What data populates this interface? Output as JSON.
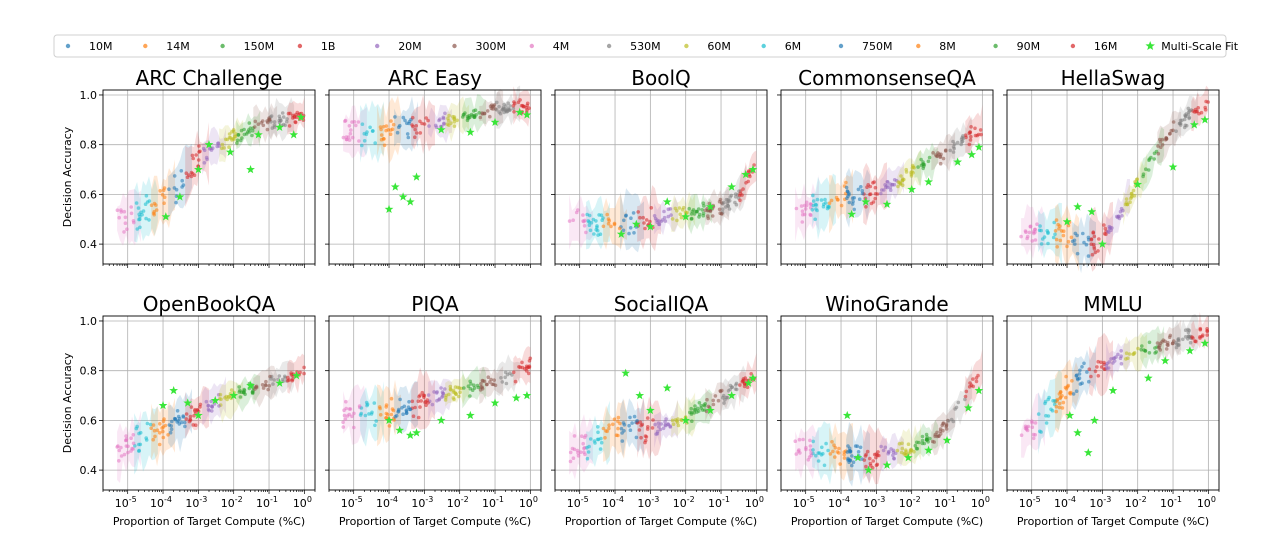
{
  "legend": {
    "entries": [
      {
        "name": "10M",
        "color": "#1f77b4",
        "marker": "dot"
      },
      {
        "name": "14M",
        "color": "#ff7f0e",
        "marker": "dot"
      },
      {
        "name": "150M",
        "color": "#2ca02c",
        "marker": "dot"
      },
      {
        "name": "1B",
        "color": "#d62728",
        "marker": "dot"
      },
      {
        "name": "20M",
        "color": "#9467bd",
        "marker": "dot"
      },
      {
        "name": "300M",
        "color": "#8c564b",
        "marker": "dot"
      },
      {
        "name": "4M",
        "color": "#e377c2",
        "marker": "dot"
      },
      {
        "name": "530M",
        "color": "#7f7f7f",
        "marker": "dot"
      },
      {
        "name": "60M",
        "color": "#bcbd22",
        "marker": "dot"
      },
      {
        "name": "6M",
        "color": "#17becf",
        "marker": "dot"
      },
      {
        "name": "750M",
        "color": "#1f77b4",
        "marker": "dot"
      },
      {
        "name": "8M",
        "color": "#ff7f0e",
        "marker": "dot"
      },
      {
        "name": "90M",
        "color": "#2ca02c",
        "marker": "dot"
      },
      {
        "name": "16M",
        "color": "#d62728",
        "marker": "dot"
      },
      {
        "name": "Multi-Scale Fit",
        "color": "#39e639",
        "marker": "star"
      }
    ]
  },
  "chart_data": [
    {
      "type": "scatter",
      "title": "ARC Challenge",
      "xscale": "log",
      "xlim": [
        2e-06,
        2
      ],
      "ylim": [
        0.32,
        1.02
      ],
      "ylabel": "Decision Accuracy",
      "xlabel": "",
      "trend": [
        [
          5e-06,
          0.49
        ],
        [
          3e-05,
          0.53
        ],
        [
          0.0001,
          0.57
        ],
        [
          0.0003,
          0.65
        ],
        [
          0.001,
          0.74
        ],
        [
          0.003,
          0.79
        ],
        [
          0.01,
          0.83
        ],
        [
          0.03,
          0.86
        ],
        [
          0.1,
          0.89
        ],
        [
          0.3,
          0.9
        ],
        [
          1,
          0.93
        ]
      ],
      "fit": [
        [
          0.00012,
          0.51
        ],
        [
          0.0003,
          0.59
        ],
        [
          0.001,
          0.7
        ],
        [
          0.002,
          0.8
        ],
        [
          0.008,
          0.77
        ],
        [
          0.03,
          0.7
        ],
        [
          0.05,
          0.84
        ],
        [
          0.2,
          0.87
        ],
        [
          0.5,
          0.84
        ],
        [
          0.8,
          0.91
        ]
      ]
    },
    {
      "type": "scatter",
      "title": "ARC Easy",
      "xscale": "log",
      "xlim": [
        2e-06,
        2
      ],
      "ylim": [
        0.32,
        1.02
      ],
      "ylabel": "",
      "xlabel": "",
      "trend": [
        [
          5e-06,
          0.84
        ],
        [
          3e-05,
          0.85
        ],
        [
          0.0001,
          0.86
        ],
        [
          0.0003,
          0.87
        ],
        [
          0.001,
          0.88
        ],
        [
          0.003,
          0.89
        ],
        [
          0.01,
          0.91
        ],
        [
          0.03,
          0.92
        ],
        [
          0.1,
          0.94
        ],
        [
          0.3,
          0.95
        ],
        [
          1,
          0.96
        ]
      ],
      "fit": [
        [
          0.0001,
          0.54
        ],
        [
          0.00015,
          0.63
        ],
        [
          0.00025,
          0.59
        ],
        [
          0.0004,
          0.57
        ],
        [
          0.0006,
          0.67
        ],
        [
          0.003,
          0.86
        ],
        [
          0.02,
          0.85
        ],
        [
          0.1,
          0.89
        ],
        [
          0.5,
          0.93
        ],
        [
          0.8,
          0.92
        ]
      ]
    },
    {
      "type": "scatter",
      "title": "BoolQ",
      "xscale": "log",
      "xlim": [
        2e-06,
        2
      ],
      "ylim": [
        0.32,
        1.02
      ],
      "ylabel": "",
      "xlabel": "",
      "trend": [
        [
          5e-06,
          0.49
        ],
        [
          3e-05,
          0.48
        ],
        [
          0.0001,
          0.48
        ],
        [
          0.0003,
          0.49
        ],
        [
          0.001,
          0.5
        ],
        [
          0.003,
          0.51
        ],
        [
          0.01,
          0.52
        ],
        [
          0.03,
          0.53
        ],
        [
          0.1,
          0.55
        ],
        [
          0.3,
          0.59
        ],
        [
          1,
          0.72
        ]
      ],
      "fit": [
        [
          0.00015,
          0.44
        ],
        [
          0.0004,
          0.48
        ],
        [
          0.001,
          0.47
        ],
        [
          0.003,
          0.57
        ],
        [
          0.01,
          0.51
        ],
        [
          0.05,
          0.55
        ],
        [
          0.2,
          0.63
        ],
        [
          0.5,
          0.68
        ],
        [
          0.8,
          0.7
        ]
      ]
    },
    {
      "type": "scatter",
      "title": "CommonsenseQA",
      "xscale": "log",
      "xlim": [
        2e-06,
        2
      ],
      "ylim": [
        0.32,
        1.02
      ],
      "ylabel": "",
      "xlabel": "",
      "trend": [
        [
          5e-06,
          0.52
        ],
        [
          3e-05,
          0.56
        ],
        [
          0.0001,
          0.59
        ],
        [
          0.0003,
          0.6
        ],
        [
          0.001,
          0.61
        ],
        [
          0.003,
          0.64
        ],
        [
          0.01,
          0.69
        ],
        [
          0.03,
          0.73
        ],
        [
          0.1,
          0.77
        ],
        [
          0.3,
          0.82
        ],
        [
          1,
          0.87
        ]
      ],
      "fit": [
        [
          0.0002,
          0.52
        ],
        [
          0.0005,
          0.57
        ],
        [
          0.002,
          0.56
        ],
        [
          0.01,
          0.62
        ],
        [
          0.03,
          0.65
        ],
        [
          0.2,
          0.73
        ],
        [
          0.5,
          0.76
        ],
        [
          0.8,
          0.79
        ]
      ]
    },
    {
      "type": "scatter",
      "title": "HellaSwag",
      "xscale": "log",
      "xlim": [
        2e-06,
        2
      ],
      "ylim": [
        0.32,
        1.02
      ],
      "ylabel": "",
      "xlabel": "",
      "trend": [
        [
          5e-06,
          0.45
        ],
        [
          3e-05,
          0.45
        ],
        [
          0.0001,
          0.44
        ],
        [
          0.0003,
          0.4
        ],
        [
          0.001,
          0.42
        ],
        [
          0.003,
          0.52
        ],
        [
          0.01,
          0.64
        ],
        [
          0.03,
          0.76
        ],
        [
          0.1,
          0.86
        ],
        [
          0.3,
          0.92
        ],
        [
          1,
          0.97
        ]
      ],
      "fit": [
        [
          0.0001,
          0.49
        ],
        [
          0.0002,
          0.55
        ],
        [
          0.0005,
          0.53
        ],
        [
          0.001,
          0.4
        ],
        [
          0.01,
          0.64
        ],
        [
          0.1,
          0.71
        ],
        [
          0.4,
          0.88
        ],
        [
          0.8,
          0.9
        ]
      ]
    },
    {
      "type": "scatter",
      "title": "OpenBookQA",
      "xscale": "log",
      "xlim": [
        2e-06,
        2
      ],
      "ylim": [
        0.32,
        1.02
      ],
      "ylabel": "Decision Accuracy",
      "xlabel": "Proportion of Target Compute (%C)",
      "trend": [
        [
          5e-06,
          0.47
        ],
        [
          3e-05,
          0.53
        ],
        [
          0.0001,
          0.56
        ],
        [
          0.0003,
          0.6
        ],
        [
          0.001,
          0.64
        ],
        [
          0.003,
          0.67
        ],
        [
          0.01,
          0.7
        ],
        [
          0.03,
          0.72
        ],
        [
          0.1,
          0.75
        ],
        [
          0.3,
          0.77
        ],
        [
          1,
          0.81
        ]
      ],
      "fit": [
        [
          0.0001,
          0.66
        ],
        [
          0.0002,
          0.72
        ],
        [
          0.0005,
          0.67
        ],
        [
          0.001,
          0.62
        ],
        [
          0.003,
          0.68
        ],
        [
          0.01,
          0.7
        ],
        [
          0.03,
          0.74
        ],
        [
          0.2,
          0.75
        ],
        [
          0.6,
          0.78
        ]
      ]
    },
    {
      "type": "scatter",
      "title": "PIQA",
      "xscale": "log",
      "xlim": [
        2e-06,
        2
      ],
      "ylim": [
        0.32,
        1.02
      ],
      "ylabel": "",
      "xlabel": "Proportion of Target Compute (%C)",
      "trend": [
        [
          5e-06,
          0.63
        ],
        [
          3e-05,
          0.62
        ],
        [
          0.0001,
          0.63
        ],
        [
          0.0003,
          0.65
        ],
        [
          0.001,
          0.68
        ],
        [
          0.003,
          0.7
        ],
        [
          0.01,
          0.72
        ],
        [
          0.03,
          0.74
        ],
        [
          0.1,
          0.76
        ],
        [
          0.3,
          0.78
        ],
        [
          1,
          0.82
        ]
      ],
      "fit": [
        [
          0.0001,
          0.6
        ],
        [
          0.0002,
          0.56
        ],
        [
          0.0004,
          0.54
        ],
        [
          0.0006,
          0.55
        ],
        [
          0.003,
          0.6
        ],
        [
          0.02,
          0.62
        ],
        [
          0.1,
          0.67
        ],
        [
          0.4,
          0.69
        ],
        [
          0.8,
          0.7
        ]
      ]
    },
    {
      "type": "scatter",
      "title": "SocialIQA",
      "xscale": "log",
      "xlim": [
        2e-06,
        2
      ],
      "ylim": [
        0.32,
        1.02
      ],
      "ylabel": "",
      "xlabel": "Proportion of Target Compute (%C)",
      "trend": [
        [
          5e-06,
          0.47
        ],
        [
          3e-05,
          0.52
        ],
        [
          0.0001,
          0.56
        ],
        [
          0.0003,
          0.58
        ],
        [
          0.001,
          0.56
        ],
        [
          0.003,
          0.58
        ],
        [
          0.01,
          0.61
        ],
        [
          0.03,
          0.65
        ],
        [
          0.1,
          0.69
        ],
        [
          0.3,
          0.73
        ],
        [
          1,
          0.79
        ]
      ],
      "fit": [
        [
          0.0002,
          0.79
        ],
        [
          0.0005,
          0.7
        ],
        [
          0.001,
          0.64
        ],
        [
          0.003,
          0.73
        ],
        [
          0.01,
          0.6
        ],
        [
          0.05,
          0.64
        ],
        [
          0.2,
          0.7
        ],
        [
          0.6,
          0.75
        ],
        [
          0.8,
          0.77
        ]
      ]
    },
    {
      "type": "scatter",
      "title": "WinoGrande",
      "xscale": "log",
      "xlim": [
        2e-06,
        2
      ],
      "ylim": [
        0.32,
        1.02
      ],
      "ylabel": "",
      "xlabel": "Proportion of Target Compute (%C)",
      "trend": [
        [
          5e-06,
          0.48
        ],
        [
          3e-05,
          0.48
        ],
        [
          0.0001,
          0.47
        ],
        [
          0.0003,
          0.46
        ],
        [
          0.001,
          0.46
        ],
        [
          0.003,
          0.47
        ],
        [
          0.01,
          0.49
        ],
        [
          0.03,
          0.52
        ],
        [
          0.1,
          0.58
        ],
        [
          0.3,
          0.68
        ],
        [
          1,
          0.82
        ]
      ],
      "fit": [
        [
          0.00015,
          0.62
        ],
        [
          0.0003,
          0.45
        ],
        [
          0.0006,
          0.4
        ],
        [
          0.002,
          0.42
        ],
        [
          0.008,
          0.45
        ],
        [
          0.03,
          0.48
        ],
        [
          0.1,
          0.52
        ],
        [
          0.4,
          0.65
        ],
        [
          0.8,
          0.72
        ]
      ]
    },
    {
      "type": "scatter",
      "title": "MMLU",
      "xscale": "log",
      "xlim": [
        2e-06,
        2
      ],
      "ylim": [
        0.32,
        1.02
      ],
      "ylabel": "",
      "xlabel": "Proportion of Target Compute (%C)",
      "trend": [
        [
          5e-06,
          0.52
        ],
        [
          3e-05,
          0.64
        ],
        [
          0.0001,
          0.72
        ],
        [
          0.0003,
          0.78
        ],
        [
          0.001,
          0.82
        ],
        [
          0.003,
          0.85
        ],
        [
          0.01,
          0.88
        ],
        [
          0.03,
          0.9
        ],
        [
          0.1,
          0.92
        ],
        [
          0.3,
          0.94
        ],
        [
          1,
          0.96
        ]
      ],
      "fit": [
        [
          0.00012,
          0.62
        ],
        [
          0.0002,
          0.55
        ],
        [
          0.0004,
          0.47
        ],
        [
          0.0006,
          0.6
        ],
        [
          0.002,
          0.72
        ],
        [
          0.02,
          0.77
        ],
        [
          0.06,
          0.84
        ],
        [
          0.3,
          0.88
        ],
        [
          0.8,
          0.91
        ]
      ]
    }
  ]
}
